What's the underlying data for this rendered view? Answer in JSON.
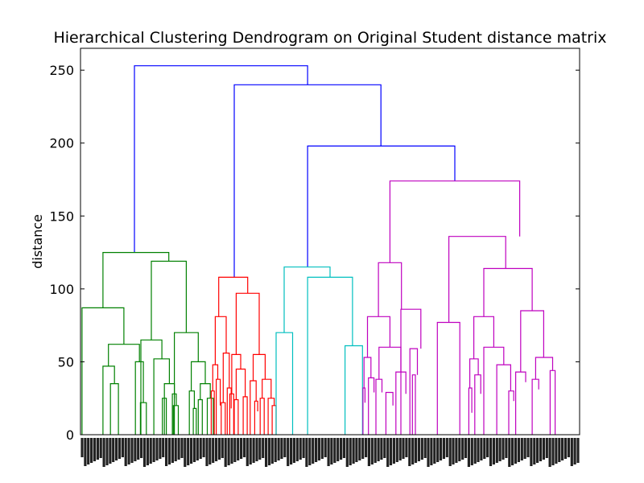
{
  "chart_data": {
    "type": "dendrogram",
    "title": "Hierarchical Clustering Dendrogram on Original Student distance matrix",
    "xlabel": "",
    "ylabel": "distance",
    "ylim": [
      0,
      265
    ],
    "yticks": [
      0,
      50,
      100,
      150,
      200,
      250
    ],
    "xlim": [
      0,
      1
    ],
    "grid": false,
    "leaf_labels_note": "dense rotated leaf labels (illegible)",
    "colors": {
      "root": "#0000ff",
      "cluster_green": "#008000",
      "cluster_red": "#ff0000",
      "cluster_cyan": "#00bfbf",
      "cluster_magenta": "#bf00bf"
    },
    "links": [
      {
        "color": "#0000ff",
        "x": [
          0.108,
          0.108,
          0.455,
          0.455
        ],
        "y": [
          125,
          253,
          253,
          240
        ]
      },
      {
        "color": "#0000ff",
        "x": [
          0.308,
          0.308,
          0.602,
          0.602
        ],
        "y": [
          108,
          240,
          240,
          198
        ]
      },
      {
        "color": "#0000ff",
        "x": [
          0.455,
          0.455,
          0.75,
          0.75
        ],
        "y": [
          115,
          198,
          198,
          174
        ]
      },
      {
        "color": "#008000",
        "x": [
          0.045,
          0.045,
          0.177,
          0.177
        ],
        "y": [
          87,
          125,
          125,
          119
        ]
      },
      {
        "color": "#008000",
        "x": [
          0.003,
          0.003,
          0.087,
          0.087
        ],
        "y": [
          0,
          87,
          87,
          62
        ]
      },
      {
        "color": "#008000",
        "x": [
          0.056,
          0.056,
          0.118,
          0.118
        ],
        "y": [
          47,
          62,
          62,
          50
        ]
      },
      {
        "color": "#008000",
        "x": [
          0.045,
          0.045,
          0.068,
          0.068
        ],
        "y": [
          0,
          47,
          47,
          35
        ]
      },
      {
        "color": "#008000",
        "x": [
          0.06,
          0.06,
          0.076,
          0.076
        ],
        "y": [
          0,
          35,
          35,
          0
        ]
      },
      {
        "color": "#008000",
        "x": [
          0.11,
          0.11,
          0.126,
          0.126
        ],
        "y": [
          0,
          50,
          50,
          22
        ]
      },
      {
        "color": "#008000",
        "x": [
          0.12,
          0.12,
          0.132,
          0.132
        ],
        "y": [
          0,
          22,
          22,
          0
        ]
      },
      {
        "color": "#008000",
        "x": [
          0.142,
          0.142,
          0.212,
          0.212
        ],
        "y": [
          65,
          119,
          119,
          70
        ]
      },
      {
        "color": "#008000",
        "x": [
          0.121,
          0.121,
          0.163,
          0.163
        ],
        "y": [
          0,
          65,
          65,
          52
        ]
      },
      {
        "color": "#008000",
        "x": [
          0.147,
          0.147,
          0.178,
          0.178
        ],
        "y": [
          0,
          52,
          52,
          35
        ]
      },
      {
        "color": "#008000",
        "x": [
          0.168,
          0.168,
          0.188,
          0.188
        ],
        "y": [
          0,
          35,
          35,
          25
        ]
      },
      {
        "color": "#008000",
        "x": [
          0.164,
          0.164,
          0.172,
          0.172
        ],
        "y": [
          0,
          25,
          25,
          0
        ]
      },
      {
        "color": "#008000",
        "x": [
          0.184,
          0.184,
          0.192,
          0.192
        ],
        "y": [
          0,
          28,
          28,
          20
        ]
      },
      {
        "color": "#008000",
        "x": [
          0.186,
          0.186,
          0.196,
          0.196
        ],
        "y": [
          0,
          20,
          20,
          0
        ]
      },
      {
        "color": "#008000",
        "x": [
          0.188,
          0.188,
          0.236,
          0.236
        ],
        "y": [
          0,
          70,
          70,
          50
        ]
      },
      {
        "color": "#008000",
        "x": [
          0.222,
          0.222,
          0.25,
          0.25
        ],
        "y": [
          30,
          50,
          50,
          35
        ]
      },
      {
        "color": "#008000",
        "x": [
          0.218,
          0.218,
          0.228,
          0.228
        ],
        "y": [
          0,
          30,
          30,
          18
        ]
      },
      {
        "color": "#008000",
        "x": [
          0.226,
          0.226,
          0.232,
          0.232
        ],
        "y": [
          0,
          18,
          18,
          0
        ]
      },
      {
        "color": "#008000",
        "x": [
          0.24,
          0.24,
          0.26,
          0.26
        ],
        "y": [
          24,
          35,
          35,
          25
        ]
      },
      {
        "color": "#008000",
        "x": [
          0.236,
          0.236,
          0.244,
          0.244
        ],
        "y": [
          0,
          24,
          24,
          0
        ]
      },
      {
        "color": "#008000",
        "x": [
          0.254,
          0.254,
          0.266,
          0.266
        ],
        "y": [
          0,
          25,
          25,
          0
        ]
      },
      {
        "color": "#ff0000",
        "x": [
          0.277,
          0.277,
          0.335,
          0.335
        ],
        "y": [
          81,
          108,
          108,
          97
        ]
      },
      {
        "color": "#ff0000",
        "x": [
          0.27,
          0.27,
          0.292,
          0.292
        ],
        "y": [
          48,
          81,
          81,
          56
        ]
      },
      {
        "color": "#ff0000",
        "x": [
          0.265,
          0.265,
          0.275,
          0.275
        ],
        "y": [
          30,
          48,
          48,
          38
        ]
      },
      {
        "color": "#ff0000",
        "x": [
          0.262,
          0.262,
          0.268,
          0.268
        ],
        "y": [
          0,
          30,
          30,
          0
        ]
      },
      {
        "color": "#ff0000",
        "x": [
          0.272,
          0.272,
          0.28,
          0.28
        ],
        "y": [
          0,
          38,
          38,
          20
        ]
      },
      {
        "color": "#ff0000",
        "x": [
          0.286,
          0.286,
          0.298,
          0.298
        ],
        "y": [
          22,
          56,
          56,
          32
        ]
      },
      {
        "color": "#ff0000",
        "x": [
          0.282,
          0.282,
          0.29,
          0.29
        ],
        "y": [
          0,
          22,
          22,
          0
        ]
      },
      {
        "color": "#ff0000",
        "x": [
          0.294,
          0.294,
          0.302,
          0.302
        ],
        "y": [
          0,
          32,
          32,
          18
        ]
      },
      {
        "color": "#ff0000",
        "x": [
          0.312,
          0.312,
          0.358,
          0.358
        ],
        "y": [
          55,
          97,
          97,
          55
        ]
      },
      {
        "color": "#ff0000",
        "x": [
          0.303,
          0.303,
          0.321,
          0.321
        ],
        "y": [
          28,
          55,
          55,
          45
        ]
      },
      {
        "color": "#ff0000",
        "x": [
          0.299,
          0.299,
          0.307,
          0.307
        ],
        "y": [
          0,
          28,
          28,
          0
        ]
      },
      {
        "color": "#ff0000",
        "x": [
          0.312,
          0.312,
          0.33,
          0.33
        ],
        "y": [
          24,
          45,
          45,
          26
        ]
      },
      {
        "color": "#ff0000",
        "x": [
          0.308,
          0.308,
          0.316,
          0.316
        ],
        "y": [
          0,
          24,
          24,
          0
        ]
      },
      {
        "color": "#ff0000",
        "x": [
          0.326,
          0.326,
          0.334,
          0.334
        ],
        "y": [
          0,
          26,
          26,
          0
        ]
      },
      {
        "color": "#ff0000",
        "x": [
          0.346,
          0.346,
          0.37,
          0.37
        ],
        "y": [
          37,
          55,
          55,
          38
        ]
      },
      {
        "color": "#ff0000",
        "x": [
          0.34,
          0.34,
          0.352,
          0.352
        ],
        "y": [
          0,
          37,
          37,
          23
        ]
      },
      {
        "color": "#ff0000",
        "x": [
          0.349,
          0.349,
          0.355,
          0.355
        ],
        "y": [
          0,
          23,
          23,
          16
        ]
      },
      {
        "color": "#ff0000",
        "x": [
          0.364,
          0.364,
          0.382,
          0.382
        ],
        "y": [
          25,
          38,
          38,
          25
        ]
      },
      {
        "color": "#ff0000",
        "x": [
          0.36,
          0.36,
          0.368,
          0.368
        ],
        "y": [
          0,
          25,
          25,
          0
        ]
      },
      {
        "color": "#ff0000",
        "x": [
          0.376,
          0.376,
          0.388,
          0.388
        ],
        "y": [
          0,
          25,
          25,
          20
        ]
      },
      {
        "color": "#ff0000",
        "x": [
          0.384,
          0.384,
          0.392,
          0.392
        ],
        "y": [
          0,
          20,
          20,
          0
        ]
      },
      {
        "color": "#00bfbf",
        "x": [
          0.408,
          0.408,
          0.5,
          0.5
        ],
        "y": [
          70,
          115,
          115,
          108
        ]
      },
      {
        "color": "#00bfbf",
        "x": [
          0.392,
          0.392,
          0.425,
          0.425
        ],
        "y": [
          0,
          70,
          70,
          0
        ]
      },
      {
        "color": "#00bfbf",
        "x": [
          0.455,
          0.455,
          0.545,
          0.545
        ],
        "y": [
          0,
          108,
          108,
          61
        ]
      },
      {
        "color": "#00bfbf",
        "x": [
          0.53,
          0.53,
          0.565,
          0.565
        ],
        "y": [
          0,
          61,
          61,
          0
        ]
      },
      {
        "color": "#bf00bf",
        "x": [
          0.62,
          0.62,
          0.88,
          0.88
        ],
        "y": [
          118,
          174,
          174,
          136
        ]
      },
      {
        "color": "#bf00bf",
        "x": [
          0.597,
          0.597,
          0.643,
          0.643
        ],
        "y": [
          81,
          118,
          118,
          86
        ]
      },
      {
        "color": "#bf00bf",
        "x": [
          0.575,
          0.575,
          0.62,
          0.62
        ],
        "y": [
          53,
          81,
          81,
          60
        ]
      },
      {
        "color": "#bf00bf",
        "x": [
          0.568,
          0.568,
          0.582,
          0.582
        ],
        "y": [
          32,
          53,
          53,
          39
        ]
      },
      {
        "color": "#bf00bf",
        "x": [
          0.566,
          0.566,
          0.57,
          0.57
        ],
        "y": [
          0,
          32,
          32,
          22
        ]
      },
      {
        "color": "#bf00bf",
        "x": [
          0.577,
          0.577,
          0.588,
          0.588
        ],
        "y": [
          0,
          39,
          39,
          29
        ]
      },
      {
        "color": "#bf00bf",
        "x": [
          0.598,
          0.598,
          0.642,
          0.642
        ],
        "y": [
          38,
          60,
          60,
          43
        ]
      },
      {
        "color": "#bf00bf",
        "x": [
          0.592,
          0.592,
          0.604,
          0.604
        ],
        "y": [
          0,
          38,
          38,
          29
        ]
      },
      {
        "color": "#bf00bf",
        "x": [
          0.612,
          0.612,
          0.626,
          0.626
        ],
        "y": [
          0,
          29,
          29,
          20
        ]
      },
      {
        "color": "#bf00bf",
        "x": [
          0.632,
          0.632,
          0.652,
          0.652
        ],
        "y": [
          0,
          43,
          43,
          28
        ]
      },
      {
        "color": "#bf00bf",
        "x": [
          0.642,
          0.642,
          0.682,
          0.682
        ],
        "y": [
          0,
          86,
          86,
          59
        ]
      },
      {
        "color": "#bf00bf",
        "x": [
          0.66,
          0.66,
          0.675,
          0.675
        ],
        "y": [
          0,
          59,
          59,
          41
        ]
      },
      {
        "color": "#bf00bf",
        "x": [
          0.665,
          0.665,
          0.671,
          0.671
        ],
        "y": [
          0,
          41,
          41,
          0
        ]
      },
      {
        "color": "#bf00bf",
        "x": [
          0.738,
          0.738,
          0.852,
          0.852
        ],
        "y": [
          77,
          136,
          136,
          114
        ]
      },
      {
        "color": "#bf00bf",
        "x": [
          0.715,
          0.715,
          0.76,
          0.76
        ],
        "y": [
          0,
          77,
          77,
          0
        ]
      },
      {
        "color": "#bf00bf",
        "x": [
          0.808,
          0.808,
          0.905,
          0.905
        ],
        "y": [
          81,
          114,
          114,
          85
        ]
      },
      {
        "color": "#bf00bf",
        "x": [
          0.788,
          0.788,
          0.828,
          0.828
        ],
        "y": [
          52,
          81,
          81,
          60
        ]
      },
      {
        "color": "#bf00bf",
        "x": [
          0.78,
          0.78,
          0.797,
          0.797
        ],
        "y": [
          32,
          52,
          52,
          41
        ]
      },
      {
        "color": "#bf00bf",
        "x": [
          0.778,
          0.778,
          0.784,
          0.784
        ],
        "y": [
          0,
          32,
          32,
          15
        ]
      },
      {
        "color": "#bf00bf",
        "x": [
          0.79,
          0.79,
          0.802,
          0.802
        ],
        "y": [
          0,
          41,
          41,
          28
        ]
      },
      {
        "color": "#bf00bf",
        "x": [
          0.808,
          0.808,
          0.848,
          0.848
        ],
        "y": [
          0,
          60,
          60,
          48
        ]
      },
      {
        "color": "#bf00bf",
        "x": [
          0.834,
          0.834,
          0.862,
          0.862
        ],
        "y": [
          0,
          48,
          48,
          30
        ]
      },
      {
        "color": "#bf00bf",
        "x": [
          0.858,
          0.858,
          0.868,
          0.868
        ],
        "y": [
          0,
          30,
          30,
          23
        ]
      },
      {
        "color": "#bf00bf",
        "x": [
          0.882,
          0.882,
          0.928,
          0.928
        ],
        "y": [
          43,
          85,
          85,
          53
        ]
      },
      {
        "color": "#bf00bf",
        "x": [
          0.872,
          0.872,
          0.892,
          0.892
        ],
        "y": [
          0,
          43,
          43,
          36
        ]
      },
      {
        "color": "#bf00bf",
        "x": [
          0.912,
          0.912,
          0.946,
          0.946
        ],
        "y": [
          38,
          53,
          53,
          44
        ]
      },
      {
        "color": "#bf00bf",
        "x": [
          0.905,
          0.905,
          0.918,
          0.918
        ],
        "y": [
          0,
          38,
          38,
          31
        ]
      },
      {
        "color": "#bf00bf",
        "x": [
          0.941,
          0.941,
          0.951,
          0.951
        ],
        "y": [
          0,
          44,
          44,
          0
        ]
      }
    ]
  }
}
